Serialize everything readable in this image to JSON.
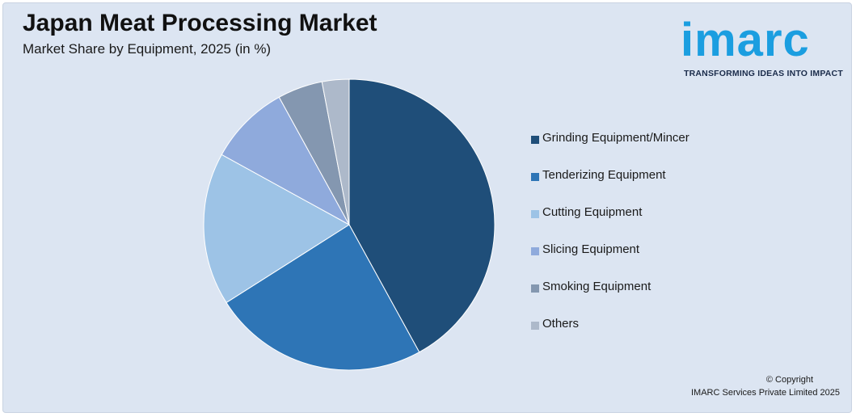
{
  "header": {
    "title": "Japan Meat Processing Market",
    "subtitle": "Market Share by Equipment, 2025 (in %)"
  },
  "logo": {
    "wordmark": "imarc",
    "tagline": "TRANSFORMING IDEAS INTO IMPACT",
    "color": "#1b9ee0"
  },
  "chart_data": {
    "type": "pie",
    "title": "Japan Meat Processing Market",
    "subtitle": "Market Share by Equipment, 2025 (in %)",
    "legend_position": "right",
    "slices": [
      {
        "label": "Grinding Equipment/Mincer",
        "value": 42,
        "color": "#1f4e79"
      },
      {
        "label": "Tenderizing Equipment",
        "value": 24,
        "color": "#2e75b6"
      },
      {
        "label": "Cutting Equipment",
        "value": 17,
        "color": "#9dc3e6"
      },
      {
        "label": "Slicing Equipment",
        "value": 9,
        "color": "#8faadc"
      },
      {
        "label": "Smoking Equipment",
        "value": 5,
        "color": "#8497b0"
      },
      {
        "label": "Others",
        "value": 3,
        "color": "#adb9ca"
      }
    ]
  },
  "footer": {
    "copyright_line1": "© Copyright",
    "copyright_line2": "IMARC Services Private Limited 2025"
  }
}
